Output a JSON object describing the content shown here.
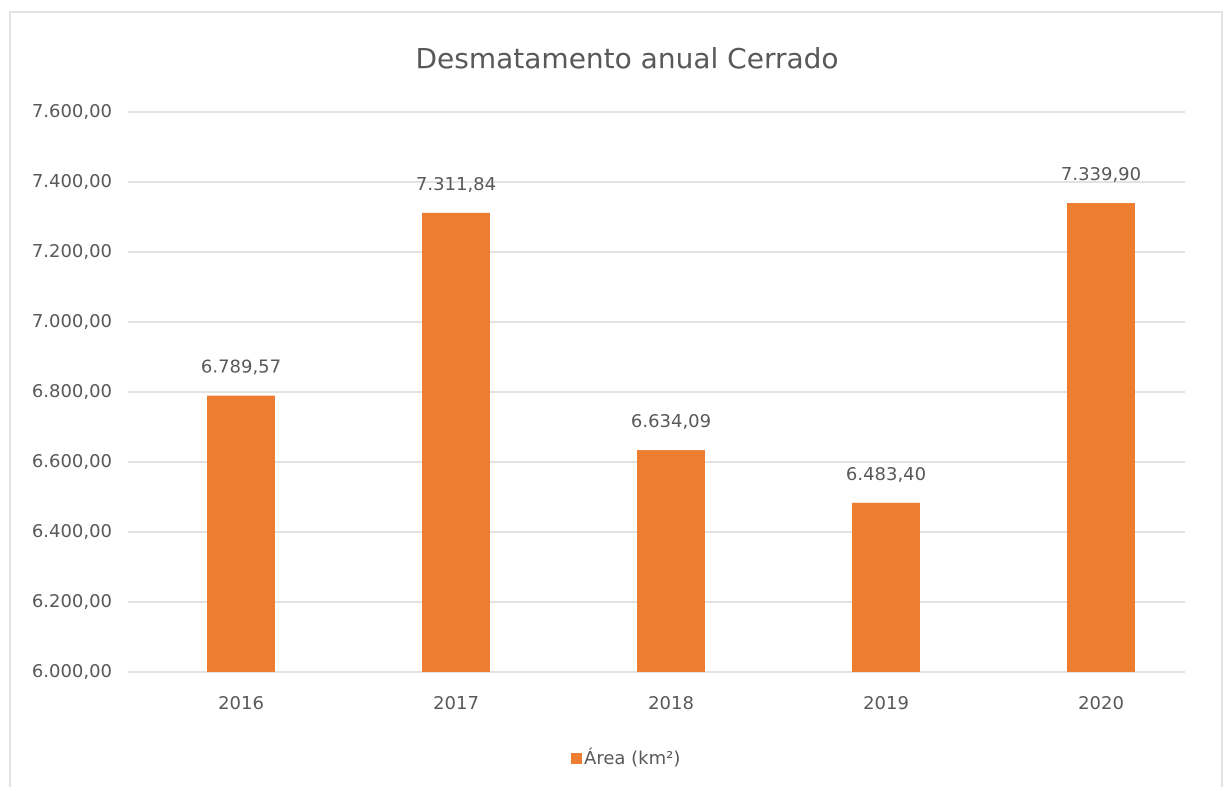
{
  "chart_data": {
    "type": "bar",
    "title": "Desmatamento anual Cerrado",
    "categories": [
      "2016",
      "2017",
      "2018",
      "2019",
      "2020"
    ],
    "series": [
      {
        "name": "Área (km²)",
        "color": "#ed7d31",
        "values": [
          6789.57,
          7311.84,
          6634.09,
          6483.4,
          7339.9
        ],
        "value_labels": [
          "6.789,57",
          "7.311,84",
          "6.634,09",
          "6.483,40",
          "7.339,90"
        ]
      }
    ],
    "ylim": [
      6000,
      7600
    ],
    "yticks": [
      {
        "value": 6000,
        "label": "6.000,00"
      },
      {
        "value": 6200,
        "label": "6.200,00"
      },
      {
        "value": 6400,
        "label": "6.400,00"
      },
      {
        "value": 6600,
        "label": "6.600,00"
      },
      {
        "value": 6800,
        "label": "6.800,00"
      },
      {
        "value": 7000,
        "label": "7.000,00"
      },
      {
        "value": 7200,
        "label": "7.200,00"
      },
      {
        "value": 7400,
        "label": "7.400,00"
      },
      {
        "value": 7600,
        "label": "7.600,00"
      }
    ],
    "grid": true,
    "legend": "bottom"
  }
}
